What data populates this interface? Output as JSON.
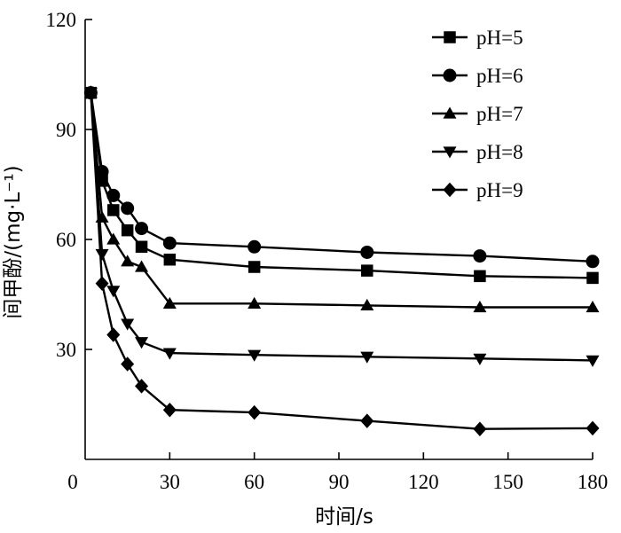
{
  "chart_data": {
    "type": "line",
    "title": "",
    "xlabel": "时间/s",
    "ylabel": "间甲酚/(mg·L⁻¹)",
    "xlim": [
      0,
      180
    ],
    "ylim": [
      0,
      120
    ],
    "x_ticks": [
      0,
      30,
      60,
      90,
      120,
      150,
      180
    ],
    "y_ticks": [
      30,
      60,
      90,
      120
    ],
    "grid": false,
    "legend_position": "top-right",
    "series": [
      {
        "name": "pH=5",
        "marker": "square",
        "x": [
          2,
          6,
          10,
          15,
          20,
          30,
          60,
          100,
          140,
          180
        ],
        "y": [
          100,
          76,
          68,
          62.5,
          58,
          54.5,
          52.5,
          51.5,
          50,
          49.5
        ]
      },
      {
        "name": "pH=6",
        "marker": "circle",
        "x": [
          2,
          6,
          10,
          15,
          20,
          30,
          60,
          100,
          140,
          180
        ],
        "y": [
          100,
          78.5,
          72,
          68.5,
          63,
          59,
          58,
          56.5,
          55.5,
          54
        ]
      },
      {
        "name": "pH=7",
        "marker": "triangle-up",
        "x": [
          2,
          6,
          10,
          15,
          20,
          30,
          60,
          100,
          140,
          180
        ],
        "y": [
          100,
          66,
          60,
          54,
          52.5,
          42.5,
          42.5,
          42,
          41.5,
          41.5
        ]
      },
      {
        "name": "pH=8",
        "marker": "triangle-down",
        "x": [
          2,
          6,
          10,
          15,
          20,
          30,
          60,
          100,
          140,
          180
        ],
        "y": [
          100,
          56,
          46,
          37,
          32,
          29,
          28.5,
          28,
          27.5,
          27
        ]
      },
      {
        "name": "pH=9",
        "marker": "diamond",
        "x": [
          2,
          6,
          10,
          15,
          20,
          30,
          60,
          100,
          140,
          180
        ],
        "y": [
          100,
          48,
          34,
          26,
          20,
          13.5,
          12.8,
          10.5,
          8.3,
          8.5
        ]
      }
    ]
  }
}
